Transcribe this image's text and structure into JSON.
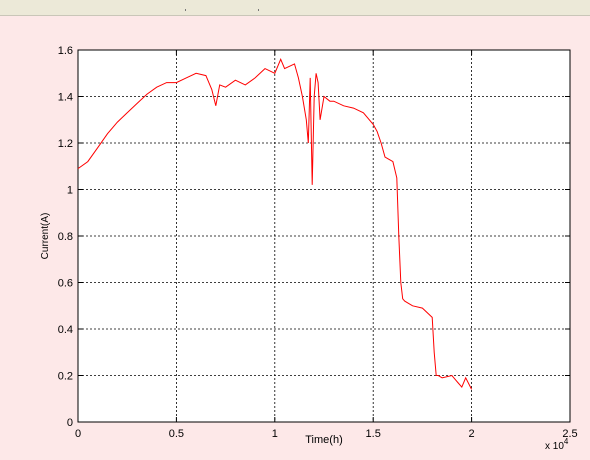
{
  "window": {
    "background": "#fde8e8"
  },
  "chart_data": {
    "type": "line",
    "title": "",
    "xlabel": "Time(h)",
    "ylabel": "Current(A)",
    "x_multiplier_label": "x 10",
    "x_multiplier_exponent": "4",
    "xlim": [
      0,
      2.5
    ],
    "ylim": [
      0,
      1.6
    ],
    "x_ticks": [
      0,
      0.5,
      1,
      1.5,
      2,
      2.5
    ],
    "x_tick_labels": [
      "0",
      "0.5",
      "1",
      "1.5",
      "2",
      "2.5"
    ],
    "y_ticks": [
      0,
      0.2,
      0.4,
      0.6,
      0.8,
      1,
      1.2,
      1.4,
      1.6
    ],
    "y_tick_labels": [
      "0",
      "0.2",
      "0.4",
      "0.6",
      "0.8",
      "1",
      "1.2",
      "1.4",
      "1.6"
    ],
    "grid": true,
    "line_color": "#ff0000",
    "series": [
      {
        "x": [
          0,
          0.05,
          0.1,
          0.15,
          0.2,
          0.25,
          0.3,
          0.35,
          0.4,
          0.45,
          0.5,
          0.55,
          0.6,
          0.65,
          0.68,
          0.7,
          0.72,
          0.75,
          0.8,
          0.85,
          0.9,
          0.95,
          1.0,
          1.03,
          1.05,
          1.1,
          1.12,
          1.14,
          1.16,
          1.17,
          1.18,
          1.19,
          1.2,
          1.21,
          1.22,
          1.23,
          1.25,
          1.28,
          1.3,
          1.35,
          1.4,
          1.45,
          1.5,
          1.52,
          1.54,
          1.56,
          1.58,
          1.6,
          1.62,
          1.63,
          1.64,
          1.65,
          1.66,
          1.68,
          1.7,
          1.75,
          1.8,
          1.81,
          1.82,
          1.83,
          1.85,
          1.9,
          1.93,
          1.95,
          1.97,
          2.0
        ],
        "y": [
          1.09,
          1.12,
          1.18,
          1.24,
          1.29,
          1.33,
          1.37,
          1.41,
          1.44,
          1.46,
          1.46,
          1.48,
          1.5,
          1.49,
          1.43,
          1.36,
          1.45,
          1.44,
          1.47,
          1.45,
          1.48,
          1.52,
          1.5,
          1.56,
          1.52,
          1.54,
          1.48,
          1.4,
          1.3,
          1.2,
          1.48,
          1.02,
          1.4,
          1.5,
          1.46,
          1.3,
          1.4,
          1.38,
          1.38,
          1.36,
          1.35,
          1.33,
          1.28,
          1.25,
          1.2,
          1.14,
          1.13,
          1.12,
          1.05,
          0.8,
          0.6,
          0.53,
          0.52,
          0.51,
          0.5,
          0.49,
          0.45,
          0.3,
          0.2,
          0.2,
          0.19,
          0.2,
          0.17,
          0.15,
          0.19,
          0.14
        ]
      }
    ]
  }
}
